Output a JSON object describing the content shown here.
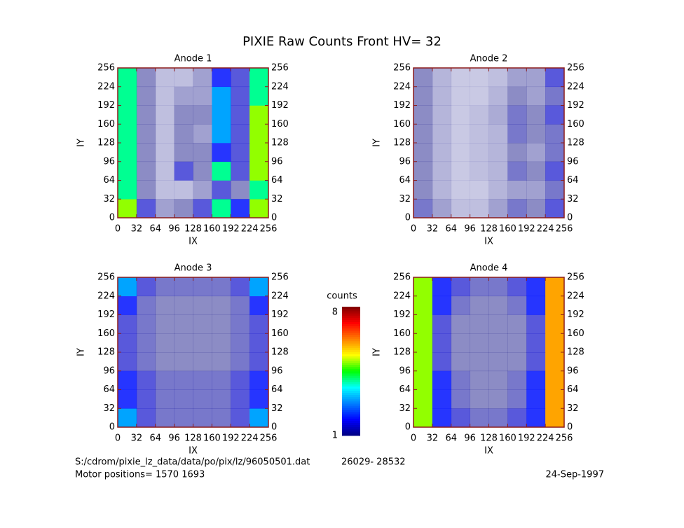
{
  "title": "PIXIE Raw Counts Front HV= 32",
  "chart_data": [
    {
      "type": "heatmap",
      "title": "Anode 1",
      "xlabel": "IX",
      "ylabel": "IY",
      "xlim": [
        0,
        256
      ],
      "ylim": [
        0,
        256
      ],
      "xticks": [
        0,
        32,
        64,
        96,
        128,
        160,
        192,
        224,
        256
      ],
      "yticks": [
        0,
        32,
        64,
        96,
        128,
        160,
        192,
        224,
        256
      ],
      "z": [
        [
          5,
          1.5,
          0.8,
          1,
          1.5,
          4,
          2,
          5
        ],
        [
          4,
          1,
          0.5,
          0.5,
          0.8,
          1.5,
          1,
          4
        ],
        [
          4,
          1,
          0.5,
          1.5,
          1,
          4,
          1.5,
          5
        ],
        [
          4,
          1,
          0.5,
          1,
          1,
          2,
          1.5,
          5
        ],
        [
          4,
          1,
          0.5,
          1,
          0.8,
          3,
          1.5,
          5
        ],
        [
          4,
          1,
          0.5,
          1,
          1,
          3,
          1.5,
          5
        ],
        [
          4,
          1,
          0.5,
          0.8,
          0.8,
          3,
          1.5,
          4
        ],
        [
          4,
          1,
          0.5,
          0.5,
          0.8,
          2,
          1.5,
          4
        ]
      ]
    },
    {
      "type": "heatmap",
      "title": "Anode 2",
      "xlabel": "IX",
      "ylabel": "IY",
      "xlim": [
        0,
        256
      ],
      "ylim": [
        0,
        256
      ],
      "xticks": [
        0,
        32,
        64,
        96,
        128,
        160,
        192,
        224,
        256
      ],
      "yticks": [
        0,
        32,
        64,
        96,
        128,
        160,
        192,
        224,
        256
      ],
      "z": [
        [
          1.2,
          0.8,
          0.5,
          0.5,
          0.8,
          1.2,
          1,
          1.5
        ],
        [
          1,
          0.6,
          0.4,
          0.4,
          0.6,
          0.8,
          0.8,
          1.2
        ],
        [
          1,
          0.6,
          0.4,
          0.5,
          0.6,
          1.2,
          1,
          1.5
        ],
        [
          1,
          0.6,
          0.4,
          0.5,
          0.6,
          1,
          0.8,
          1.2
        ],
        [
          1,
          0.6,
          0.4,
          0.5,
          0.6,
          1.2,
          1,
          1.2
        ],
        [
          1,
          0.6,
          0.4,
          0.5,
          0.7,
          1.2,
          1,
          1.5
        ],
        [
          1,
          0.6,
          0.4,
          0.4,
          0.6,
          1,
          0.8,
          1.2
        ],
        [
          1,
          0.6,
          0.4,
          0.4,
          0.5,
          0.8,
          0.8,
          1.5
        ]
      ]
    },
    {
      "type": "heatmap",
      "title": "Anode 3",
      "xlabel": "IX",
      "ylabel": "IY",
      "xlim": [
        0,
        256
      ],
      "ylim": [
        0,
        256
      ],
      "xticks": [
        0,
        32,
        64,
        96,
        128,
        160,
        192,
        224,
        256
      ],
      "yticks": [
        0,
        32,
        64,
        96,
        128,
        160,
        192,
        224,
        256
      ],
      "z": [
        [
          3,
          1.5,
          1.2,
          1.2,
          1.2,
          1.2,
          1.5,
          3
        ],
        [
          2,
          1.5,
          1.2,
          1.2,
          1.2,
          1.2,
          1.5,
          2
        ],
        [
          2,
          1.5,
          1.2,
          1.2,
          1.2,
          1.2,
          1.5,
          2
        ],
        [
          1.5,
          1.2,
          1,
          1,
          1,
          1,
          1.2,
          1.5
        ],
        [
          1.5,
          1.2,
          1,
          1,
          1,
          1,
          1.2,
          1.5
        ],
        [
          1.5,
          1.2,
          1,
          1,
          1,
          1,
          1.2,
          1.5
        ],
        [
          2,
          1.2,
          1,
          1,
          1,
          1,
          1.2,
          2
        ],
        [
          3,
          1.5,
          1.2,
          1.2,
          1.2,
          1.2,
          1.5,
          3
        ]
      ]
    },
    {
      "type": "heatmap",
      "title": "Anode 4",
      "xlabel": "IX",
      "ylabel": "IY",
      "xlim": [
        0,
        256
      ],
      "ylim": [
        0,
        256
      ],
      "xticks": [
        0,
        32,
        64,
        96,
        128,
        160,
        192,
        224,
        256
      ],
      "yticks": [
        0,
        32,
        64,
        96,
        128,
        160,
        192,
        224,
        256
      ],
      "z": [
        [
          5,
          2,
          1.5,
          1.2,
          1.2,
          1.5,
          2,
          6
        ],
        [
          5,
          2,
          1.2,
          1,
          1,
          1.2,
          2,
          6
        ],
        [
          5,
          2,
          1.2,
          1,
          1,
          1.2,
          2,
          6
        ],
        [
          5,
          1.5,
          1,
          1,
          1,
          1,
          1.5,
          6
        ],
        [
          5,
          1.5,
          1,
          1,
          1,
          1,
          1.5,
          6
        ],
        [
          5,
          1.5,
          1,
          1,
          1,
          1,
          1.5,
          6
        ],
        [
          5,
          2,
          1.2,
          1,
          1,
          1.2,
          2,
          6
        ],
        [
          5,
          2,
          1.5,
          1.2,
          1.2,
          1.5,
          2,
          6
        ]
      ]
    }
  ],
  "colorbar": {
    "label": "counts",
    "min": 1,
    "max": 8,
    "colors": [
      "#00007f",
      "#0000ff",
      "#007fff",
      "#00ffff",
      "#00ff00",
      "#ffff00",
      "#ff7f00",
      "#ff0000",
      "#7f0000"
    ]
  },
  "footer": {
    "file": "S:/cdrom/pixie_lz_data/data/po/pix/lz/96050501.dat",
    "range": "26029- 28532",
    "motor": "Motor positions= 1570 1693",
    "date": "24-Sep-1997"
  }
}
